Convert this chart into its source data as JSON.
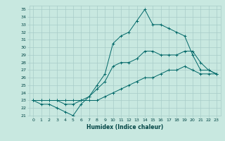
{
  "xlabel": "Humidex (Indice chaleur)",
  "ylabel_ticks": [
    21,
    22,
    23,
    24,
    25,
    26,
    27,
    28,
    29,
    30,
    31,
    32,
    33,
    34,
    35
  ],
  "xlim": [
    -0.5,
    23.5
  ],
  "ylim": [
    21,
    35.5
  ],
  "background_color": "#c8e8e0",
  "grid_color": "#a8ccc8",
  "line_color": "#006868",
  "hours": [
    0,
    1,
    2,
    3,
    4,
    5,
    6,
    7,
    8,
    9,
    10,
    11,
    12,
    13,
    14,
    15,
    16,
    17,
    18,
    19,
    20,
    21,
    22,
    23
  ],
  "line_max": [
    23,
    22.5,
    22.5,
    22,
    21.5,
    21,
    22.5,
    23.5,
    25,
    26.5,
    30.5,
    31.5,
    32,
    33.5,
    35,
    33,
    33,
    32.5,
    32,
    31.5,
    29,
    27,
    27,
    26.5
  ],
  "line_mean": [
    23,
    23,
    23,
    23,
    22.5,
    22.5,
    23,
    23.5,
    24.5,
    25.5,
    27.5,
    28,
    28,
    28.5,
    29.5,
    29.5,
    29,
    29,
    29,
    29.5,
    29.5,
    28,
    27,
    26.5
  ],
  "line_min": [
    23,
    23,
    23,
    23,
    23,
    23,
    23,
    23,
    23,
    23.5,
    24,
    24.5,
    25,
    25.5,
    26,
    26,
    26.5,
    27,
    27,
    27.5,
    27,
    26.5,
    26.5,
    26.5
  ]
}
